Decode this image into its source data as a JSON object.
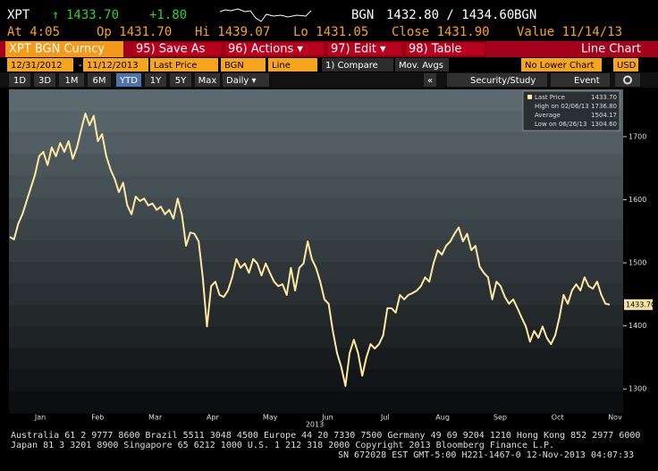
{
  "header": {
    "ticker": "XPT",
    "arrow": "↑",
    "price": "1433.70",
    "change": "+1.80",
    "currency": "BGN",
    "bid_ask": "1432.80 / 1434.60",
    "currency2": "BGN",
    "stats": [
      "At 4:05",
      "Op 1431.70",
      "Hi 1439.07",
      "Lo 1431.05",
      "Close 1431.90",
      "Value 11/14/13"
    ]
  },
  "toolbar": {
    "security": "XPT BGN Curncy",
    "buttons": [
      "95) Save As",
      "96) Actions ▾",
      "97) Edit ▾",
      "98) Table"
    ],
    "view": "Line Chart"
  },
  "controls": [
    "12/31/2012",
    "-",
    "11/12/2013",
    "Last Price",
    "BGN",
    "Line",
    "1) Compare",
    "Mov. Avgs",
    "No Lower Chart",
    "USD"
  ],
  "periods": [
    "1D",
    "3D",
    "1M",
    "6M",
    "YTD",
    "1Y",
    "5Y",
    "Max"
  ],
  "active_period": 4,
  "frequency": "Daily ▾",
  "tools": [
    "«",
    "Security/Study",
    "Event"
  ],
  "chart_data": {
    "type": "line",
    "color": "#ffe9a0",
    "values": [
      1541,
      1537,
      1562,
      1577,
      1598,
      1619,
      1640,
      1669,
      1676,
      1655,
      1683,
      1669,
      1690,
      1676,
      1693,
      1665,
      1683,
      1711,
      1736.8,
      1718,
      1733,
      1693,
      1704,
      1669,
      1648,
      1633,
      1612,
      1627,
      1591,
      1577,
      1605,
      1598,
      1602,
      1591,
      1594,
      1584,
      1589,
      1577,
      1584,
      1570,
      1602,
      1577,
      1527,
      1548,
      1546,
      1534,
      1477,
      1399,
      1463,
      1470,
      1449,
      1446,
      1456,
      1477,
      1506,
      1492,
      1499,
      1484,
      1506,
      1499,
      1480,
      1499,
      1484,
      1470,
      1463,
      1466,
      1449,
      1492,
      1456,
      1492,
      1499,
      1534,
      1506,
      1492,
      1470,
      1442,
      1435,
      1392,
      1357,
      1335,
      1304.6,
      1357,
      1378,
      1357,
      1321,
      1350,
      1371,
      1364,
      1371,
      1385,
      1428,
      1428,
      1421,
      1449,
      1442,
      1449,
      1452,
      1456,
      1463,
      1477,
      1470,
      1499,
      1520,
      1513,
      1527,
      1534,
      1546,
      1556,
      1534,
      1546,
      1520,
      1527,
      1494,
      1484,
      1477,
      1442,
      1470,
      1463,
      1446,
      1435,
      1442,
      1428,
      1413,
      1399,
      1375,
      1392,
      1381,
      1399,
      1381,
      1371,
      1385,
      1413,
      1449,
      1435,
      1456,
      1466,
      1456,
      1477,
      1463,
      1459,
      1470,
      1449,
      1435,
      1433.7
    ],
    "x_labels": [
      "Jan",
      "Feb",
      "Mar",
      "Apr",
      "May",
      "Jun",
      "Jul",
      "Aug",
      "Sep",
      "Oct",
      "Nov"
    ],
    "year_label": "2013",
    "ylim": [
      1262,
      1775
    ],
    "yticks": [
      1300,
      1400,
      1500,
      1600,
      1700
    ],
    "grid": false,
    "last_value": {
      "value": 1433.7,
      "label": "1433.70"
    },
    "legend": [
      [
        "Last Price",
        "1433.70"
      ],
      [
        "High on 02/06/13",
        "1736.80"
      ],
      [
        "Average",
        "1504.17"
      ],
      [
        "Low on 06/26/13",
        "1304.60"
      ]
    ]
  },
  "footer": [
    "Australia 61 2 9777 8600 Brazil 5511 3048 4500 Europe 44 20 7330 7500 Germany 49 69 9204 1210 Hong Kong 852 2977 6000",
    "Japan 81 3 3201 8900       Singapore 65 6212 1000       U.S. 1 212 318 2000       Copyright 2013 Bloomberg Finance L.P.",
    "SN 672028 EST  GMT-5:00 H221-1467-0 12-Nov-2013 04:07:33"
  ]
}
